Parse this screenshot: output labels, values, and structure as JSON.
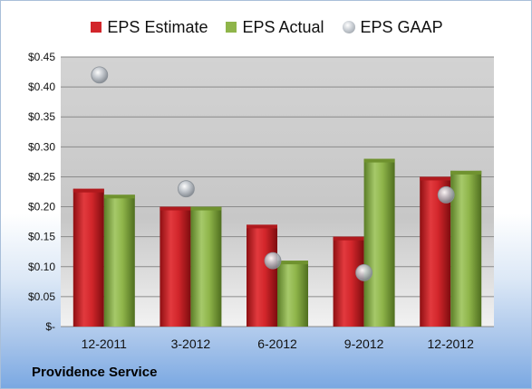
{
  "chart_data": {
    "type": "bar",
    "categories": [
      "12-2011",
      "3-2012",
      "6-2012",
      "9-2012",
      "12-2012"
    ],
    "series": [
      {
        "name": "EPS Estimate",
        "kind": "bar",
        "color": "#d2262b",
        "values": [
          0.23,
          0.2,
          0.17,
          0.15,
          0.25
        ]
      },
      {
        "name": "EPS Actual",
        "kind": "bar",
        "color": "#8fb54a",
        "values": [
          0.22,
          0.2,
          0.11,
          0.28,
          0.26
        ]
      },
      {
        "name": "EPS GAAP",
        "kind": "marker",
        "color": "#b0b5bc",
        "values": [
          0.42,
          0.23,
          0.11,
          0.09,
          0.22
        ]
      }
    ],
    "yticks": [
      "$-",
      "$0.05",
      "$0.10",
      "$0.15",
      "$0.20",
      "$0.25",
      "$0.30",
      "$0.35",
      "$0.40",
      "$0.45"
    ],
    "ylim": [
      0,
      0.45
    ],
    "grid": true,
    "legend_position": "top"
  },
  "footer": {
    "label": "Providence Service"
  }
}
